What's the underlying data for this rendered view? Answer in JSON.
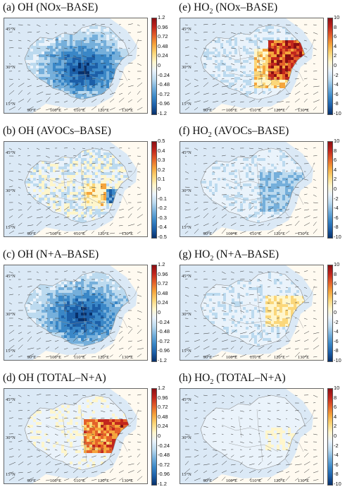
{
  "chart_data": [
    {
      "type": "heatmap",
      "title": "(a) OH (NOx–BASE)",
      "title_parts": {
        "pre": "(a) OH",
        "sub": "",
        "post": " (NOx–BASE)"
      },
      "colorbar_ticks": [
        "1.2",
        "0.96",
        "0.72",
        "0.48",
        "0.24",
        "0",
        "-0.24",
        "-0.48",
        "-0.72",
        "-0.96",
        "-1.2"
      ],
      "clim": [
        -1.2,
        1.2
      ],
      "pattern": "negative"
    },
    {
      "type": "heatmap",
      "title": "(b) OH (AVOCs–BASE)",
      "title_parts": {
        "pre": "(b) OH",
        "sub": "",
        "post": " (AVOCs–BASE)"
      },
      "colorbar_ticks": [
        "0.5",
        "0.4",
        "0.3",
        "0.2",
        "0.1",
        "0",
        "-0.1",
        "-0.2",
        "-0.3",
        "-0.4",
        "-0.5"
      ],
      "clim": [
        -0.5,
        0.5
      ],
      "pattern": "mixed"
    },
    {
      "type": "heatmap",
      "title": "(c) OH (N+A–BASE)",
      "title_parts": {
        "pre": "(c) OH",
        "sub": "",
        "post": " (N+A–BASE)"
      },
      "colorbar_ticks": [
        "1.2",
        "0.96",
        "0.72",
        "0.48",
        "0.24",
        "0",
        "-0.24",
        "-0.48",
        "-0.72",
        "-0.96",
        "-1.2"
      ],
      "clim": [
        -1.2,
        1.2
      ],
      "pattern": "negative"
    },
    {
      "type": "heatmap",
      "title": "(d) OH (TOTAL–N+A)",
      "title_parts": {
        "pre": "(d) OH",
        "sub": "",
        "post": " (TOTAL–N+A)"
      },
      "colorbar_ticks": [
        "1.2",
        "0.96",
        "0.72",
        "0.48",
        "0.24",
        "0",
        "-0.24",
        "-0.48",
        "-0.72",
        "-0.96",
        "-1.2"
      ],
      "clim": [
        -1.2,
        1.2
      ],
      "pattern": "positive_east"
    },
    {
      "type": "heatmap",
      "title": "(e) HO2 (NOx–BASE)",
      "title_parts": {
        "pre": "(e) HO",
        "sub": "2",
        "post": " (NOx–BASE)"
      },
      "colorbar_ticks": [
        "10",
        "8",
        "6",
        "4",
        "2",
        "0",
        "-2",
        "-4",
        "-6",
        "-8",
        "-10"
      ],
      "clim": [
        -10,
        10
      ],
      "pattern": "positive_strong"
    },
    {
      "type": "heatmap",
      "title": "(f) HO2 (AVOCs–BASE)",
      "title_parts": {
        "pre": "(f) HO",
        "sub": "2",
        "post": " (AVOCs–BASE)"
      },
      "colorbar_ticks": [
        "10",
        "8",
        "6",
        "4",
        "2",
        "0",
        "-2",
        "-4",
        "-6",
        "-8",
        "-10"
      ],
      "clim": [
        -10,
        10
      ],
      "pattern": "negative_weak"
    },
    {
      "type": "heatmap",
      "title": "(g) HO2 (N+A–BASE)",
      "title_parts": {
        "pre": "(g) HO",
        "sub": "2",
        "post": " (N+A–BASE)"
      },
      "colorbar_ticks": [
        "10",
        "8",
        "6",
        "4",
        "2",
        "0",
        "-2",
        "-4",
        "-6",
        "-8",
        "-10"
      ],
      "clim": [
        -10,
        10
      ],
      "pattern": "positive_weak"
    },
    {
      "type": "heatmap",
      "title": "(h) HO2 (TOTAL–N+A)",
      "title_parts": {
        "pre": "(h) HO",
        "sub": "2",
        "post": " (TOTAL–N+A)"
      },
      "colorbar_ticks": [
        "10",
        "8",
        "6",
        "4",
        "2",
        "0",
        "-2",
        "-4",
        "-6",
        "-8",
        "-10"
      ],
      "clim": [
        -10,
        10
      ],
      "pattern": "positive_faint"
    }
  ],
  "axes": {
    "lat_ticks": [
      "45°N",
      "30°N",
      "15°N"
    ],
    "lon_ticks": [
      "90°E",
      "100°E",
      "110°E",
      "120°E",
      "130°E"
    ]
  },
  "colors": {
    "colorbar": [
      "#08306b",
      "#1c5fa8",
      "#3a87c7",
      "#75afdb",
      "#bcdaef",
      "#eaf3fb",
      "#fff6cc",
      "#fbd77a",
      "#f5a53c",
      "#e4612a",
      "#c2261d",
      "#8c0e13"
    ],
    "land_zero": "#dbe9f6",
    "ocean": "#fffaf0",
    "border": "#8a8a8a"
  }
}
